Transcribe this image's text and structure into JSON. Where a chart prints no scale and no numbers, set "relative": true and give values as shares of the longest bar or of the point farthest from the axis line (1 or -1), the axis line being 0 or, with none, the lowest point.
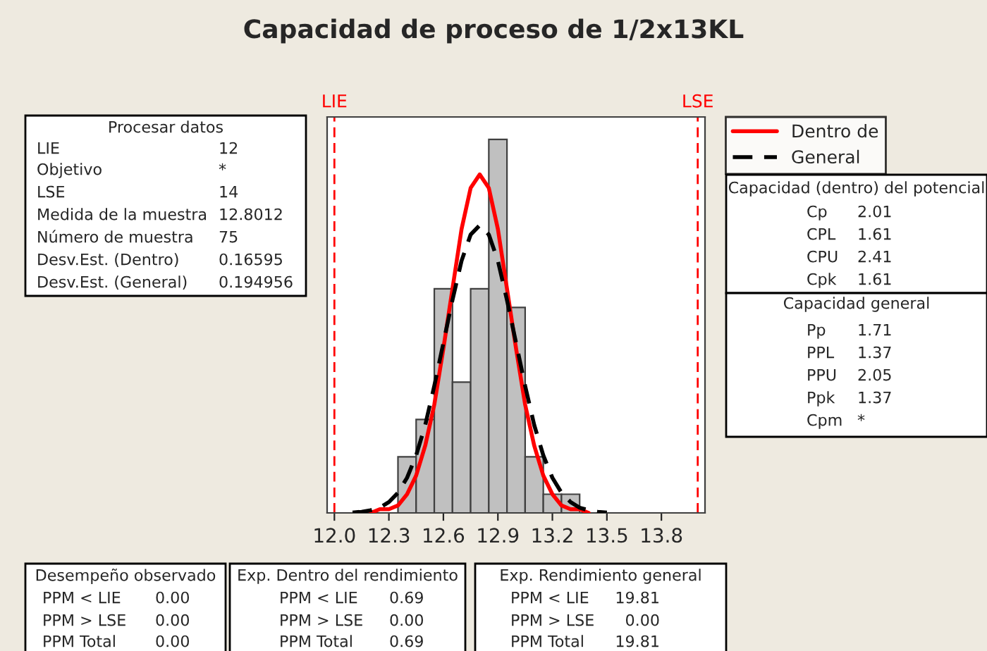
{
  "chart_data": {
    "type": "histogram",
    "title": "Capacidad de proceso de 1/2x13KL",
    "relative": true,
    "bins": [
      12.35,
      12.45,
      12.55,
      12.65,
      12.75,
      12.85,
      12.95,
      13.05,
      13.15,
      13.25,
      13.35
    ],
    "values": [
      0.15,
      0.25,
      0.6,
      0.35,
      0.6,
      1.0,
      0.55,
      0.15,
      0.05,
      0.05
    ],
    "color": "#c0c0c0",
    "series": [
      {
        "type": "line",
        "name": "Dentro de",
        "color": "#ff0000",
        "line_style": "solid",
        "x": [
          12.2,
          12.25,
          12.3,
          12.35,
          12.4,
          12.45,
          12.5,
          12.55,
          12.6,
          12.65,
          12.7,
          12.75,
          12.8,
          12.85,
          12.9,
          12.95,
          13.0,
          13.05,
          13.1,
          13.15,
          13.2,
          13.25,
          13.3,
          13.35,
          13.4
        ],
        "values": [
          0.0,
          0.01,
          0.01,
          0.02,
          0.05,
          0.1,
          0.18,
          0.29,
          0.44,
          0.6,
          0.76,
          0.87,
          0.906,
          0.87,
          0.76,
          0.6,
          0.44,
          0.29,
          0.18,
          0.1,
          0.05,
          0.02,
          0.01,
          0.01,
          0.0
        ]
      },
      {
        "type": "line",
        "name": "General",
        "color": "#000000",
        "line_style": "dashed",
        "x": [
          12.1,
          12.15,
          12.2,
          12.25,
          12.3,
          12.35,
          12.4,
          12.45,
          12.5,
          12.55,
          12.6,
          12.65,
          12.7,
          12.75,
          12.8,
          12.85,
          12.9,
          12.95,
          13.0,
          13.05,
          13.1,
          13.15,
          13.2,
          13.25,
          13.3,
          13.35,
          13.4,
          13.45,
          13.5
        ],
        "values": [
          0.001,
          0.003,
          0.007,
          0.014,
          0.029,
          0.054,
          0.094,
          0.154,
          0.235,
          0.34,
          0.455,
          0.57,
          0.675,
          0.745,
          0.77,
          0.745,
          0.675,
          0.57,
          0.455,
          0.34,
          0.235,
          0.154,
          0.094,
          0.054,
          0.029,
          0.014,
          0.007,
          0.003,
          0.001
        ]
      }
    ],
    "xlim": [
      11.96,
      14.04
    ],
    "xticks": [
      {
        "value": 12.0,
        "label": "12.0"
      },
      {
        "value": 12.3,
        "label": "12.3"
      },
      {
        "value": 12.6,
        "label": "12.6"
      },
      {
        "value": 12.9,
        "label": "12.9"
      },
      {
        "value": 13.2,
        "label": "13.2"
      },
      {
        "value": 13.5,
        "label": "13.5"
      },
      {
        "value": 13.8,
        "label": "13.8"
      }
    ],
    "ref_lines": [
      {
        "axis": "x",
        "value": 12,
        "label": "LIE",
        "color": "#ff0000",
        "line_style": "dashed"
      },
      {
        "axis": "x",
        "value": 14,
        "label": "LSE",
        "color": "#ff0000",
        "line_style": "dashed"
      }
    ],
    "legend": "right",
    "annotations": [
      "Procesar datos",
      "LIE",
      "12",
      "Objetivo",
      "*",
      "LSE",
      "14",
      "Medida de la muestra",
      "12.8012",
      "Número de muestra",
      "75",
      "Desv.Est. (Dentro)",
      "0.16595",
      "Desv.Est. (General)",
      "0.194956",
      "Capacidad (dentro) del potencial",
      "Cp",
      "2.01",
      "CPL",
      "1.61",
      "CPU",
      "2.41",
      "Cpk",
      "1.61",
      "Capacidad general",
      "Pp",
      "1.71",
      "PPL",
      "1.37",
      "PPU",
      "2.05",
      "Ppk",
      "1.37",
      "Cpm",
      "*",
      "Desempeño observado",
      "PPM < LIE",
      "0.00",
      "PPM > LSE",
      "0.00",
      "PPM Total",
      "0.00",
      "Exp. Dentro del rendimiento",
      "PPM < LIE",
      "0.69",
      "PPM > LSE",
      "0.00",
      "PPM Total",
      "0.69",
      "Exp. Rendimiento general",
      "PPM < LIE",
      "19.81",
      "PPM > LSE",
      "0.00",
      "PPM Total",
      "19.81"
    ]
  }
}
